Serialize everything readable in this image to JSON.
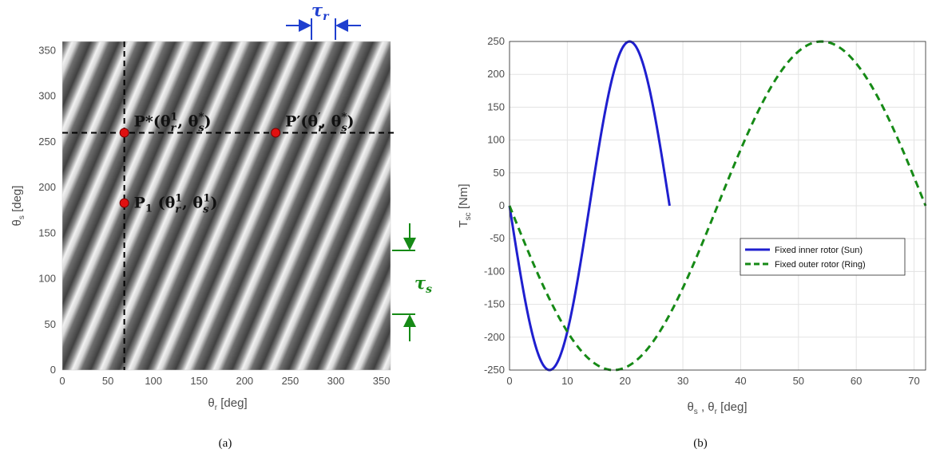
{
  "chart_data": [
    {
      "type": "heatmap",
      "panel_label": "(a)",
      "xlabel": "θ_r [deg]",
      "ylabel": "θ_s [deg]",
      "xlim": [
        0,
        360
      ],
      "ylim": [
        0,
        360
      ],
      "xticks": [
        0,
        50,
        100,
        150,
        200,
        250,
        300,
        350
      ],
      "yticks": [
        0,
        50,
        100,
        150,
        200,
        250,
        300,
        350
      ],
      "colormap": "grayscale",
      "stripe_period_x_deg": 31,
      "stripe_period_y_deg": 72,
      "dashed_lines": {
        "vertical_x": 68,
        "horizontal_y": 260
      },
      "points": [
        {
          "name": "P*",
          "x": 68,
          "y": 260,
          "label_main": "P*(θ",
          "sub1": "r",
          "sup1": "1",
          "mid": ", θ",
          "sub2": "s",
          "sup2": "*",
          "end": ")"
        },
        {
          "name": "P′",
          "x": 234,
          "y": 260,
          "label_main": "P′(θ",
          "sub1": "r",
          "sup1": "′",
          "mid": ", θ",
          "sub2": "s",
          "sup2": "*",
          "end": ")"
        },
        {
          "name": "P1",
          "x": 68,
          "y": 183,
          "label_main": "P",
          "p_sub": "1",
          "label_paren": "(θ",
          "sub1": "r",
          "sup1": "1",
          "mid": ", θ",
          "sub2": "s",
          "sup2": "1",
          "end": ")"
        }
      ],
      "annotations": {
        "tau_r": {
          "base": "τ",
          "sub": "r",
          "color": "#1f3fcf"
        },
        "tau_s": {
          "base": "τ",
          "sub": "s",
          "color": "#168a16"
        }
      },
      "colors": {
        "dashed": "#000000",
        "point_fill": "#e01010"
      }
    },
    {
      "type": "line",
      "panel_label": "(b)",
      "xlabel": "θ_s , θ_r [deg]",
      "ylabel": "T_sc [Nm]",
      "xlim": [
        0,
        72
      ],
      "ylim": [
        -250,
        250
      ],
      "xticks": [
        0,
        10,
        20,
        30,
        40,
        50,
        60,
        70
      ],
      "yticks": [
        250,
        200,
        150,
        100,
        50,
        0,
        -50,
        -100,
        -150,
        -200,
        -250
      ],
      "grid": true,
      "legend_position": "right",
      "series": [
        {
          "name": "Fixed inner rotor (Sun)",
          "color": "#1f1fcf",
          "style": "solid",
          "amplitude": 250,
          "period": 27.7,
          "x_range": [
            0,
            27.7
          ]
        },
        {
          "name": "Fixed outer rotor (Ring)",
          "color": "#168a16",
          "style": "dashed",
          "amplitude": 250,
          "period": 72,
          "x_range": [
            0,
            72
          ]
        }
      ]
    }
  ]
}
